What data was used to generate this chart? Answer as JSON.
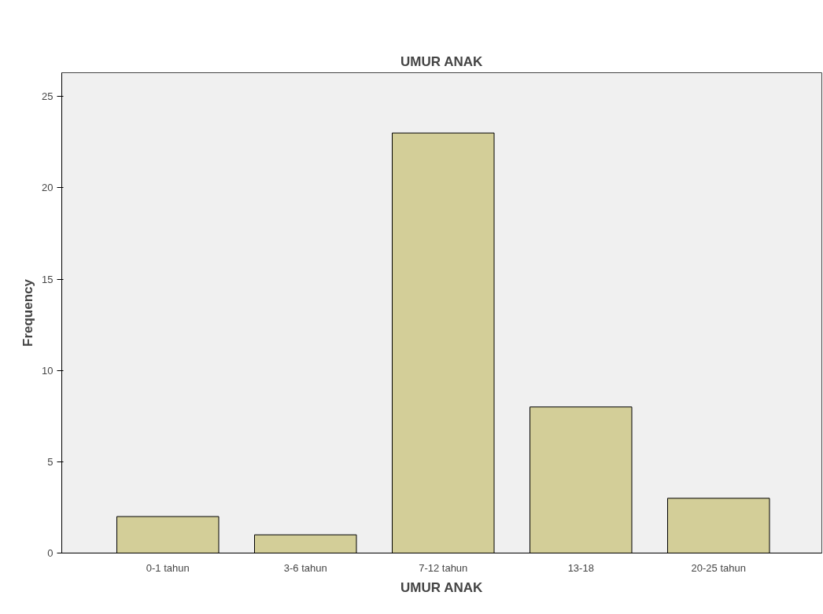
{
  "chart_data": {
    "type": "bar",
    "title": "UMUR ANAK",
    "xlabel": "UMUR ANAK",
    "ylabel": "Frequency",
    "categories": [
      "0-1 tahun",
      "3-6 tahun",
      "7-12 tahun",
      "13-18",
      "20-25 tahun"
    ],
    "values": [
      2,
      1,
      23,
      8,
      3
    ],
    "color": "#d3ce98",
    "ylim": [
      0,
      26.3
    ],
    "yticks": [
      0,
      5,
      10,
      15,
      20,
      25
    ],
    "grid": false
  }
}
